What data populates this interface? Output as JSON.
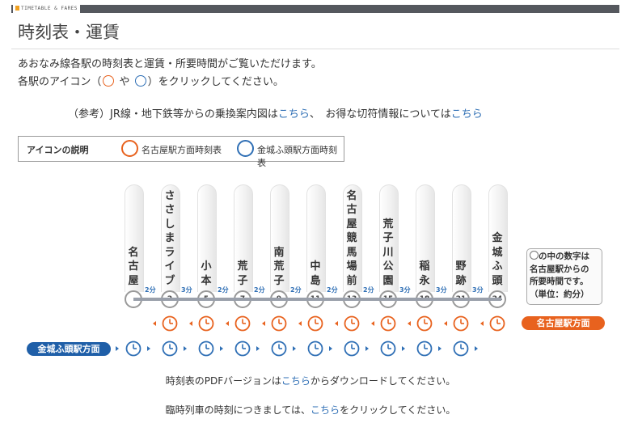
{
  "header": {
    "section_label": "TIMETABLE & FARES",
    "title": "時刻表・運賃"
  },
  "intro": {
    "line1": "あおなみ線各駅の時刻表と運賃・所要時間がご覧いただけます。",
    "line2_a": "各駅のアイコン（",
    "line2_b": "や",
    "line2_c": "）をクリックしてください。"
  },
  "reference": {
    "prefix": "（参考）JR線・地下鉄等からの乗換案内図は",
    "link1": "こちら",
    "mid": "、　お得な切符情報については",
    "link2": "こちら"
  },
  "legend": {
    "title": "アイコンの説明",
    "orange_label": "名古屋駅方面時刻表",
    "blue_label": "金城ふ頭駅方面時刻表"
  },
  "stations": [
    {
      "name": "名古屋",
      "minutes": ""
    },
    {
      "name": "ささしまライブ",
      "minutes": "2"
    },
    {
      "name": "小本",
      "minutes": "5"
    },
    {
      "name": "荒子",
      "minutes": "7"
    },
    {
      "name": "南荒子",
      "minutes": "9"
    },
    {
      "name": "中島",
      "minutes": "11"
    },
    {
      "name": "名古屋競馬場前",
      "minutes": "13"
    },
    {
      "name": "荒子川公園",
      "minutes": "15"
    },
    {
      "name": "稲永",
      "minutes": "18"
    },
    {
      "name": "野跡",
      "minutes": "21"
    },
    {
      "name": "金城ふ頭",
      "minutes": "24"
    }
  ],
  "gaps": [
    "2分",
    "3分",
    "2分",
    "2分",
    "2分",
    "2分",
    "2分",
    "3分",
    "3分",
    "3分"
  ],
  "note": {
    "line1": "の中の数字は",
    "line2": "名古屋駅からの",
    "line3": "所要時間です。",
    "line4": "（単位：約分）"
  },
  "directions": {
    "orange": "名古屋駅方面",
    "blue": "金城ふ頭駅方面"
  },
  "footer": {
    "pdf_a": "時刻表のPDFバージョンは",
    "pdf_link": "こちら",
    "pdf_b": "からダウンロードしてください。",
    "extra_a": "臨時列車の時刻につきましては、",
    "extra_link": "こちら",
    "extra_b": "をクリックしてください。"
  },
  "colors": {
    "orange": "#e8621e",
    "blue": "#2f6fb5",
    "line": "#9aa0ab"
  }
}
